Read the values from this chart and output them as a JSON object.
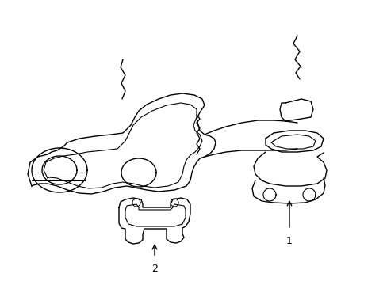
{
  "background_color": "#ffffff",
  "line_color": "#000000",
  "lw": 1.0,
  "fig_width": 4.89,
  "fig_height": 3.6,
  "dpi": 100
}
